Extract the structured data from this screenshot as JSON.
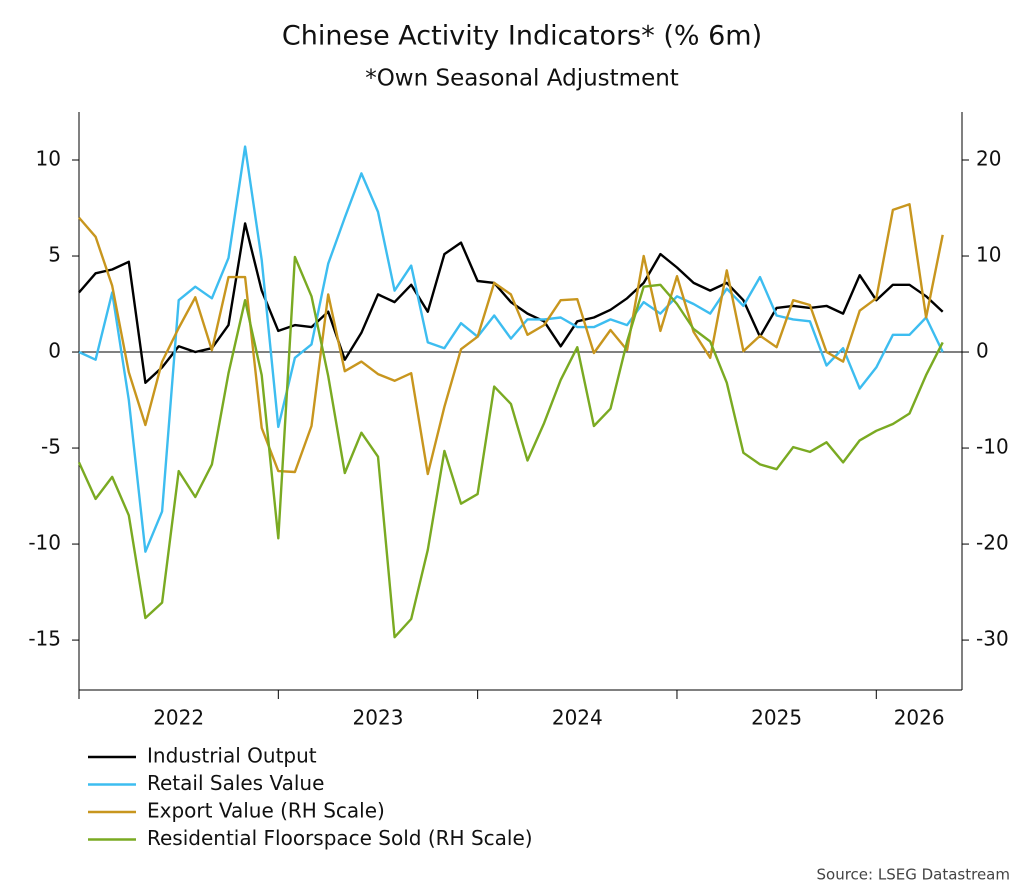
{
  "chart_data": {
    "type": "line",
    "title": "Chinese Activity Indicators* (% 6m)",
    "subtitle": "*Own Seasonal Adjustment",
    "source": "Source: LSEG Datastream",
    "x": [
      2022,
      2022.0833,
      2022.1667,
      2022.25,
      2022.3333,
      2022.4167,
      2022.5,
      2022.5833,
      2022.6667,
      2022.75,
      2022.8333,
      2022.9167,
      2023,
      2023.0833,
      2023.1667,
      2023.25,
      2023.3333,
      2023.4167,
      2023.5,
      2023.5833,
      2023.6667,
      2023.75,
      2023.8333,
      2023.9167,
      2024,
      2024.0833,
      2024.1667,
      2024.25,
      2024.3333,
      2024.4167,
      2024.5,
      2024.5833,
      2024.6667,
      2024.75,
      2024.8333,
      2024.9167,
      2025,
      2025.0833,
      2025.1667,
      2025.25,
      2025.3333,
      2025.4167,
      2025.5,
      2025.5833,
      2025.6667,
      2025.75,
      2025.8333,
      2025.9167,
      2026,
      2026.0833,
      2026.1667,
      2026.25,
      2026.3333
    ],
    "xlim": [
      2022,
      2026.43
    ],
    "xticks": [
      {
        "value": 2022,
        "label": "2022"
      },
      {
        "value": 2023,
        "label": "2023"
      },
      {
        "value": 2024,
        "label": "2024"
      },
      {
        "value": 2025,
        "label": "2025"
      },
      {
        "value": 2026,
        "label": "2026"
      }
    ],
    "ylim": [
      -17.6,
      12.5
    ],
    "yticks": [
      -15,
      -10,
      -5,
      0,
      5,
      10
    ],
    "y2lim": [
      -35.2,
      25
    ],
    "y2ticks": [
      -30,
      -20,
      -10,
      0,
      10,
      20
    ],
    "series": [
      {
        "name": "Industrial Output",
        "color": "#000000",
        "axis": "y",
        "values": [
          3.1,
          4.1,
          4.3,
          4.7,
          -1.6,
          -0.8,
          0.3,
          0.0,
          0.2,
          1.4,
          6.7,
          3.2,
          1.1,
          1.4,
          1.3,
          2.1,
          -0.4,
          1.0,
          3.0,
          2.6,
          3.5,
          2.1,
          5.1,
          5.7,
          3.7,
          3.6,
          2.6,
          2.0,
          1.6,
          0.3,
          1.6,
          1.8,
          2.2,
          2.8,
          3.6,
          5.1,
          4.4,
          3.6,
          3.2,
          3.6,
          2.7,
          0.8,
          2.3,
          2.4,
          2.3,
          2.4,
          2.0,
          4.0,
          2.7,
          3.5,
          3.5,
          2.9,
          2.1
        ]
      },
      {
        "name": "Retail Sales Value",
        "color": "#3dbdf0",
        "axis": "y",
        "values": [
          0.0,
          -0.4,
          3.1,
          -2.5,
          -10.4,
          -8.3,
          2.7,
          3.4,
          2.8,
          4.9,
          10.7,
          4.8,
          -3.9,
          -0.3,
          0.4,
          4.6,
          7.0,
          9.3,
          7.3,
          3.2,
          4.5,
          0.5,
          0.2,
          1.5,
          0.8,
          1.9,
          0.7,
          1.7,
          1.7,
          1.8,
          1.3,
          1.3,
          1.7,
          1.4,
          2.6,
          2.0,
          2.9,
          2.5,
          2.0,
          3.3,
          2.4,
          3.9,
          1.9,
          1.7,
          1.6,
          -0.7,
          0.2,
          -1.9,
          -0.8,
          0.9,
          0.9,
          1.8,
          0.0
        ]
      },
      {
        "name": "Export Value (RH Scale)",
        "color": "#c8961e",
        "axis": "y2",
        "values": [
          14.0,
          12.0,
          6.9,
          -2.1,
          -7.6,
          -1.0,
          2.5,
          5.7,
          0.2,
          7.8,
          7.8,
          -7.9,
          -12.4,
          -12.5,
          -7.7,
          6.0,
          -2.0,
          -1.0,
          -2.3,
          -3.0,
          -2.2,
          -12.7,
          -5.7,
          0.3,
          1.6,
          7.2,
          6.0,
          1.8,
          2.8,
          5.4,
          5.5,
          -0.1,
          2.3,
          0.2,
          10.0,
          2.2,
          7.9,
          2.1,
          -0.6,
          8.5,
          0.1,
          1.7,
          0.5,
          5.4,
          4.9,
          0.0,
          -1.0,
          4.3,
          5.6,
          14.8,
          15.4,
          3.6,
          12.2
        ]
      },
      {
        "name": "Residential Floorspace Sold (RH Scale)",
        "color": "#7aaa22",
        "axis": "y2",
        "values": [
          -11.5,
          -15.3,
          -13.0,
          -17.0,
          -27.7,
          -26.1,
          -12.4,
          -15.1,
          -11.7,
          -2.2,
          5.4,
          -2.4,
          -19.4,
          9.9,
          5.8,
          -2.5,
          -12.6,
          -8.4,
          -10.9,
          -29.7,
          -27.8,
          -20.6,
          -10.3,
          -15.8,
          -14.8,
          -3.6,
          -5.4,
          -11.3,
          -7.4,
          -2.9,
          0.5,
          -7.7,
          -5.9,
          1.1,
          6.8,
          7.0,
          5.0,
          2.4,
          1.1,
          -3.2,
          -10.5,
          -11.7,
          -12.2,
          -9.9,
          -10.4,
          -9.4,
          -11.5,
          -9.2,
          -8.2,
          -7.5,
          -6.4,
          -2.4,
          1.0
        ]
      }
    ]
  }
}
